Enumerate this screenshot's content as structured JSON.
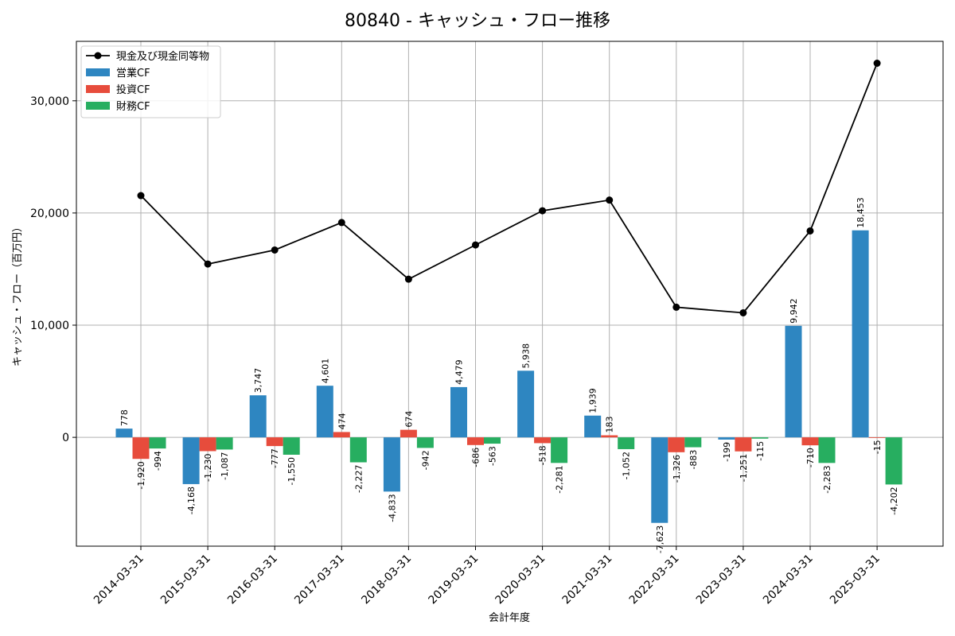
{
  "chart_data": {
    "type": "bar",
    "title": "80840 - キャッシュ・フロー推移",
    "xlabel": "会計年度",
    "ylabel": "キャッシュ・フロー（百万円）",
    "categories": [
      "2014-03-31",
      "2015-03-31",
      "2016-03-31",
      "2017-03-31",
      "2018-03-31",
      "2019-03-31",
      "2020-03-31",
      "2021-03-31",
      "2022-03-31",
      "2023-03-31",
      "2024-03-31",
      "2025-03-31"
    ],
    "ylim": [
      -9700,
      35300
    ],
    "yticks": [
      0,
      10000,
      20000,
      30000
    ],
    "ytick_labels": [
      "0",
      "10,000",
      "20,000",
      "30,000"
    ],
    "grid": true,
    "legend_position": "top-left",
    "series": [
      {
        "name": "営業CF",
        "kind": "bar",
        "color": "#2e86c1",
        "values": [
          778,
          -4168,
          3747,
          4601,
          -4833,
          4479,
          5938,
          1939,
          -7623,
          -199,
          9942,
          18453
        ],
        "labels": [
          "778",
          "-4,168",
          "3,747",
          "4,601",
          "-4,833",
          "4,479",
          "5,938",
          "1,939",
          "-7,623",
          "-199",
          "9,942",
          "18,453"
        ]
      },
      {
        "name": "投資CF",
        "kind": "bar",
        "color": "#e74c3c",
        "values": [
          -1920,
          -1230,
          -777,
          474,
          674,
          -686,
          -518,
          183,
          -1326,
          -1251,
          -710,
          -15
        ],
        "labels": [
          "-1,920",
          "-1,230",
          "-777",
          "474",
          "674",
          "-686",
          "-518",
          "183",
          "-1,326",
          "-1,251",
          "-710",
          "-15"
        ]
      },
      {
        "name": "財務CF",
        "kind": "bar",
        "color": "#27ae60",
        "values": [
          -994,
          -1087,
          -1550,
          -2227,
          -942,
          -563,
          -2281,
          -1052,
          -883,
          -115,
          -2283,
          -4202
        ],
        "labels": [
          "-994",
          "-1,087",
          "-1,550",
          "-2,227",
          "-942",
          "-563",
          "-2,281",
          "-1,052",
          "-883",
          "-115",
          "-2,283",
          "-4,202"
        ]
      },
      {
        "name": "現金及び現金同等物",
        "kind": "line",
        "color": "#000000",
        "values": [
          21550,
          15450,
          16700,
          19150,
          14100,
          17150,
          20200,
          21150,
          11600,
          11100,
          18400,
          33350
        ]
      }
    ]
  }
}
